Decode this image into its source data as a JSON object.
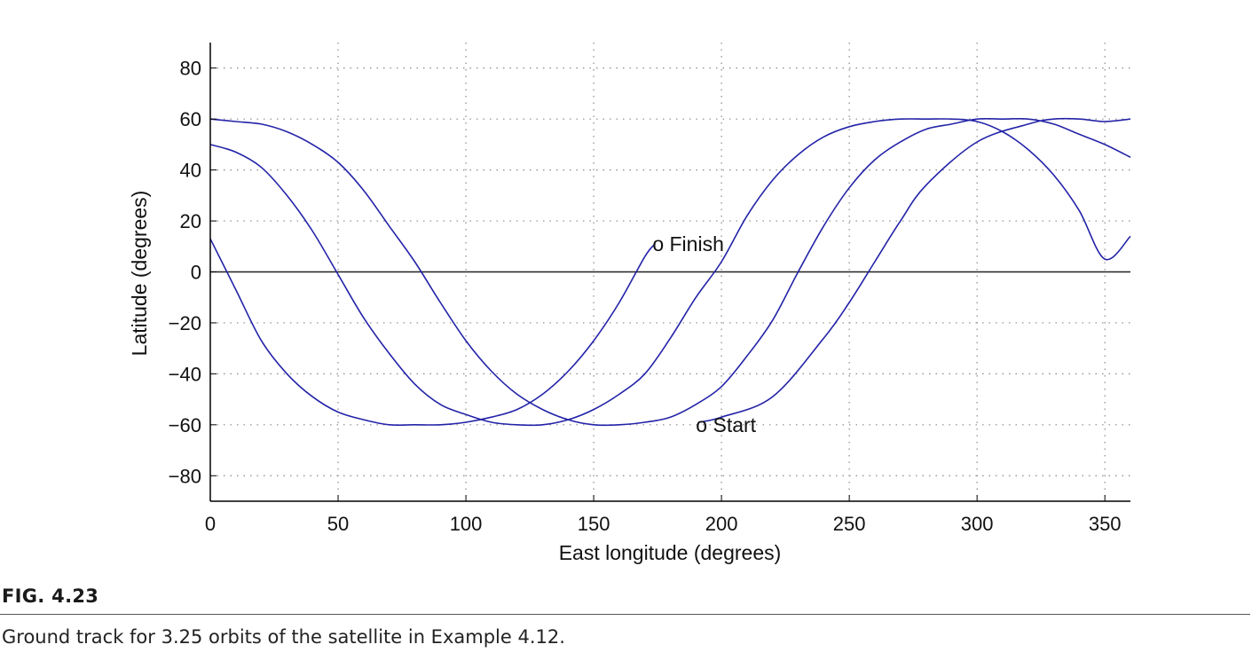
{
  "chart_data": {
    "type": "line",
    "xlabel": "East longitude (degrees)",
    "ylabel": "Latitude (degrees)",
    "xlim": [
      0,
      360
    ],
    "ylim": [
      -90,
      90
    ],
    "xticks": [
      0,
      50,
      100,
      150,
      200,
      250,
      300,
      350
    ],
    "yticks": [
      80,
      60,
      40,
      20,
      0,
      -20,
      -40,
      -60,
      -80
    ],
    "ytick_labels": [
      "80",
      "60",
      "40",
      "20",
      "0",
      "−20",
      "−40",
      "−60",
      "−80"
    ],
    "grid": true,
    "line_color": "#2323a8",
    "series": [
      {
        "x": [
          191,
          200,
          220,
          240,
          250,
          260,
          270,
          280,
          300,
          320,
          330,
          340,
          350,
          360
        ],
        "y": [
          -59,
          -57,
          -49,
          -26,
          -12,
          4,
          20,
          34,
          51,
          58,
          60,
          60,
          59,
          60
        ]
      },
      {
        "x": [
          0,
          10,
          20,
          30,
          40,
          50,
          60,
          70,
          80,
          90,
          100,
          110,
          120,
          130,
          140,
          150,
          160,
          170,
          180,
          190,
          200,
          210,
          220,
          230,
          240,
          250,
          260,
          270,
          280,
          290,
          300,
          310,
          320,
          330,
          340,
          350,
          360
        ],
        "y": [
          60,
          59,
          58,
          55,
          50,
          43,
          32,
          18,
          4,
          -12,
          -27,
          -39,
          -48,
          -54,
          -58,
          -60,
          -60,
          -59,
          -57,
          -52,
          -45,
          -33,
          -19,
          0,
          18,
          33,
          44,
          51,
          56,
          58,
          60,
          60,
          60,
          58,
          54,
          50,
          45
        ]
      },
      {
        "x": [
          0,
          10,
          20,
          30,
          40,
          50,
          60,
          70,
          80,
          90,
          100,
          110,
          120,
          130,
          140,
          150,
          160,
          170,
          180,
          190,
          200,
          210,
          220,
          230,
          240,
          250,
          260,
          270,
          280,
          290,
          300,
          310,
          320,
          330,
          340,
          350,
          360
        ],
        "y": [
          50,
          47,
          41,
          30,
          16,
          -1,
          -18,
          -32,
          -44,
          -52,
          -56,
          -59,
          -60,
          -60,
          -58,
          -54,
          -48,
          -40,
          -26,
          -10,
          4,
          22,
          36,
          46,
          53,
          57,
          59,
          60,
          60,
          60,
          59,
          55,
          48,
          38,
          24,
          5,
          14
        ]
      },
      {
        "x": [
          0,
          10,
          20,
          30,
          40,
          50,
          60,
          70,
          80,
          90,
          100,
          110,
          120,
          130,
          140,
          150,
          160,
          170,
          174
        ],
        "y": [
          13,
          -7,
          -27,
          -40,
          -49,
          -55,
          -58,
          -60,
          -60,
          -60,
          -59,
          -57,
          -54,
          -48,
          -39,
          -27,
          -12,
          6,
          11
        ]
      }
    ],
    "annotations": [
      {
        "text": "o Finish",
        "x": 173,
        "y": 11
      },
      {
        "text": "o Start",
        "x": 190,
        "y": -60
      }
    ]
  },
  "figure": {
    "label": "FIG. 4.23",
    "caption": "Ground track for 3.25 orbits of the satellite in Example 4.12."
  }
}
